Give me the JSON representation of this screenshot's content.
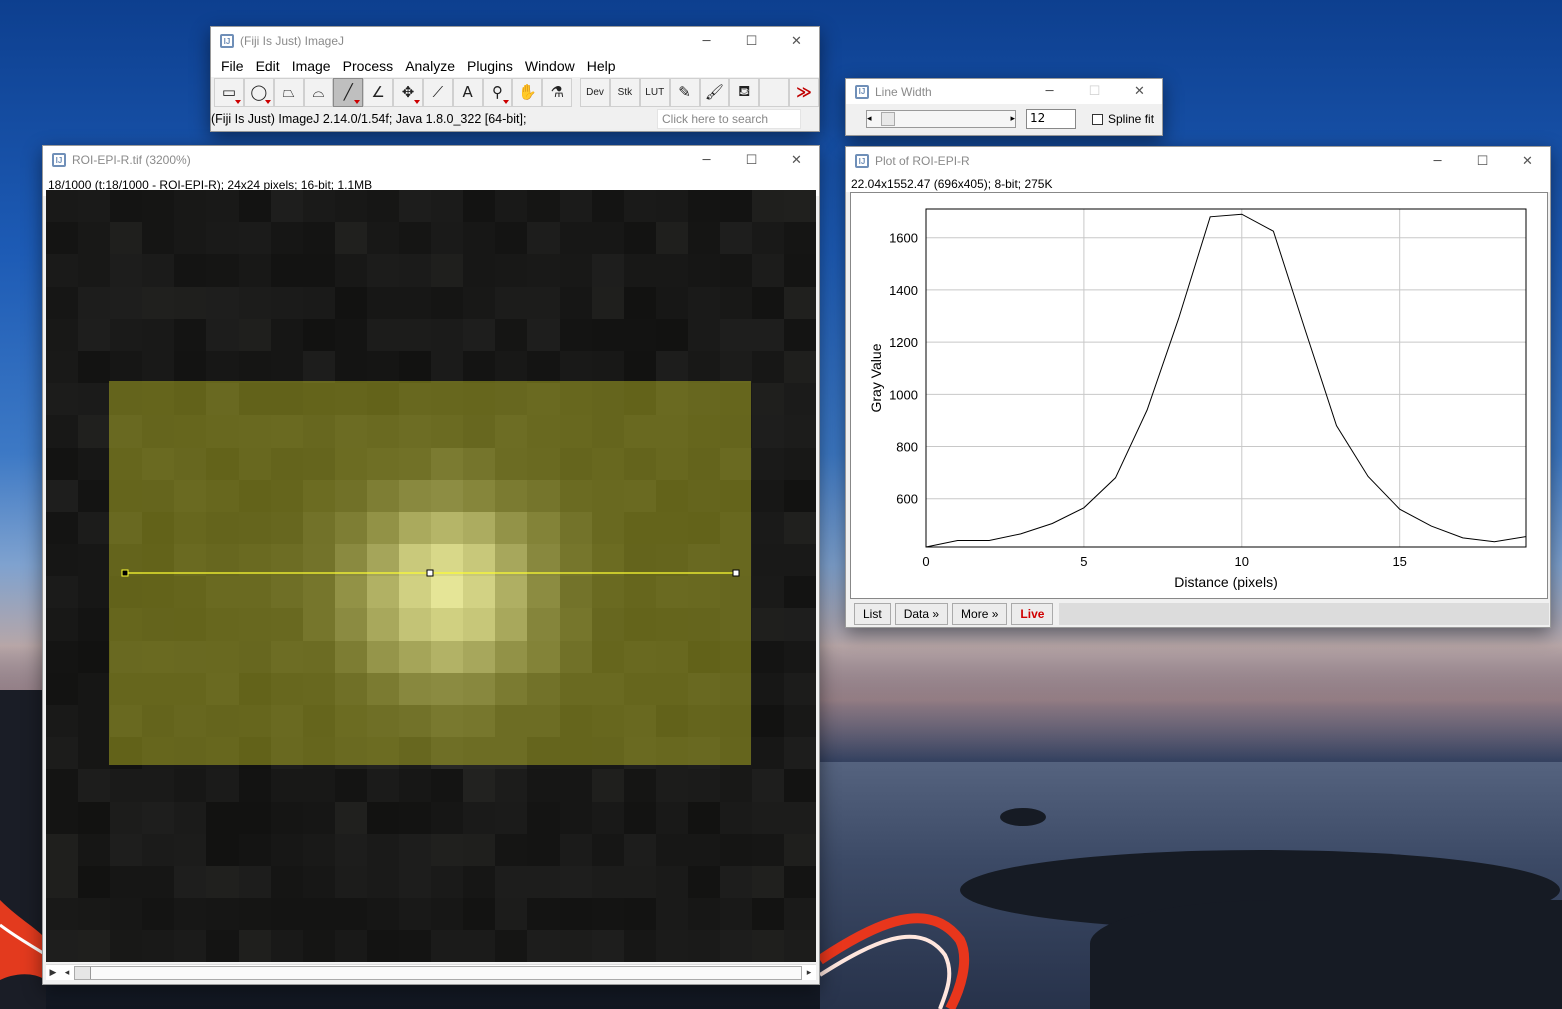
{
  "colors": {
    "roi_line": "#ffff33",
    "live": "#d00000",
    "tool_marker": "#c00000"
  },
  "imagej": {
    "title": "(Fiji Is Just) ImageJ",
    "menus": [
      "File",
      "Edit",
      "Image",
      "Process",
      "Analyze",
      "Plugins",
      "Window",
      "Help"
    ],
    "tools": [
      {
        "name": "rectangle-tool-icon",
        "glyph": "▭"
      },
      {
        "name": "oval-tool-icon",
        "glyph": "◯"
      },
      {
        "name": "polygon-tool-icon",
        "glyph": "⏢"
      },
      {
        "name": "freehand-tool-icon",
        "glyph": "⌓"
      },
      {
        "name": "line-tool-icon",
        "glyph": "╱"
      },
      {
        "name": "angle-tool-icon",
        "glyph": "∠"
      },
      {
        "name": "point-tool-icon",
        "glyph": "✥"
      },
      {
        "name": "wand-tool-icon",
        "glyph": "⟋"
      },
      {
        "name": "text-tool-icon",
        "glyph": "A"
      },
      {
        "name": "magnifier-tool-icon",
        "glyph": "⚲"
      },
      {
        "name": "hand-tool-icon",
        "glyph": "✋"
      },
      {
        "name": "color-picker-icon",
        "glyph": "⚗"
      }
    ],
    "tool_dev": "Dev",
    "tool_stk": "Stk",
    "tool_lut": "LUT",
    "more_tools": "≫",
    "status": "(Fiji Is Just) ImageJ 2.14.0/1.54f; Java 1.8.0_322 [64-bit];",
    "search_placeholder": "Click here to search"
  },
  "line_width": {
    "title": "Line Width",
    "value": "12",
    "spline_label": "Spline fit",
    "spline_checked": false
  },
  "image_window": {
    "title": "ROI-EPI-R.tif (3200%)",
    "info": "18/1000 (t:18/1000 - ROI-EPI-R); 24x24 pixels; 16-bit; 1.1MB"
  },
  "plot_window": {
    "title": "Plot of ROI-EPI-R",
    "info": "22.04x1552.47   (696x405); 8-bit; 275K",
    "buttons": {
      "list": "List",
      "data": "Data »",
      "more": "More »",
      "live": "Live"
    }
  },
  "chart_data": {
    "type": "line",
    "xlabel": "Distance (pixels)",
    "ylabel": "Gray Value",
    "xlim": [
      0,
      19
    ],
    "ylim": [
      415,
      1710
    ],
    "xticks": [
      0,
      5,
      10,
      15
    ],
    "yticks": [
      600,
      800,
      1000,
      1200,
      1400,
      1600
    ],
    "grid": true,
    "series": [
      {
        "x": [
          0,
          1,
          2,
          3,
          4,
          5,
          6,
          7,
          8,
          9,
          10,
          11,
          12,
          13,
          14,
          15,
          16,
          17,
          18,
          19
        ],
        "values": [
          415,
          440,
          440,
          465,
          505,
          565,
          680,
          940,
          1290,
          1680,
          1690,
          1625,
          1250,
          880,
          685,
          560,
          495,
          450,
          435,
          455
        ]
      }
    ]
  }
}
